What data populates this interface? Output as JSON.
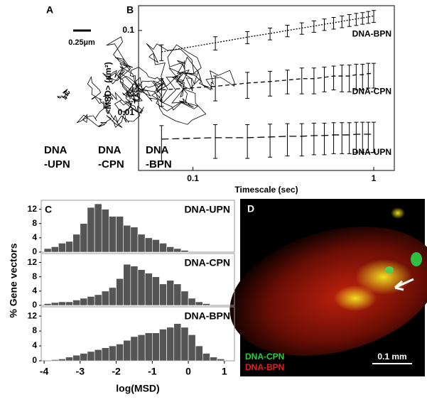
{
  "panel_a": {
    "letter": "A",
    "scale_bar": "0.25µm",
    "labels": [
      [
        "DNA",
        "-UPN"
      ],
      [
        "DNA",
        "-CPN"
      ],
      [
        "DNA",
        "-BPN"
      ]
    ]
  },
  "panel_d": {
    "letter": "D",
    "legend": [
      {
        "name": "DNA-CPN",
        "color": "#2ecc40"
      },
      {
        "name": "DNA-BPN",
        "color": "#e8201a"
      }
    ],
    "scale_bar": "0.1 mm"
  },
  "chart_data": [
    {
      "type": "line",
      "letter": "B",
      "xlabel": "Timescale (sec)",
      "ylabel": "<MSD> (µm²)",
      "log_scale": true,
      "x": [
        0.067,
        0.133,
        0.2,
        0.267,
        0.333,
        0.4,
        0.467,
        0.533,
        0.6,
        0.667,
        0.733,
        0.8,
        0.867,
        0.933,
        1
      ],
      "xlim": [
        0.05,
        1.3
      ],
      "xticks": [
        0.1,
        1
      ],
      "ylim": [
        0.002,
        0.2
      ],
      "yticks": [
        0.1,
        0.01
      ],
      "series": [
        {
          "name": "DNA-BPN",
          "color": "#000000",
          "line_style": "dotted",
          "values": [
            0.055,
            0.071,
            0.083,
            0.092,
            0.1,
            0.107,
            0.113,
            0.119,
            0.124,
            0.129,
            0.134,
            0.138,
            0.142,
            0.146,
            0.15
          ],
          "errors": [
            0.012,
            0.013,
            0.014,
            0.015,
            0.016,
            0.017,
            0.018,
            0.019,
            0.02,
            0.021,
            0.022,
            0.023,
            0.023,
            0.024,
            0.025
          ]
        },
        {
          "name": "DNA-CPN",
          "color": "#000000",
          "line_style": "dashed",
          "values": [
            0.019,
            0.021,
            0.023,
            0.024,
            0.025,
            0.026,
            0.026,
            0.027,
            0.028,
            0.028,
            0.028,
            0.029,
            0.029,
            0.03,
            0.03
          ],
          "errors": [
            0.007,
            0.007,
            0.008,
            0.008,
            0.008,
            0.009,
            0.009,
            0.009,
            0.009,
            0.01,
            0.01,
            0.01,
            0.01,
            0.01,
            0.01
          ]
        },
        {
          "name": "DNA-UPN",
          "color": "#000000",
          "line_style": "longdash",
          "values": [
            0.0048,
            0.005,
            0.005,
            0.0051,
            0.0052,
            0.0052,
            0.0053,
            0.0053,
            0.0054,
            0.0054,
            0.0054,
            0.0055,
            0.0055,
            0.0055,
            0.0055
          ],
          "errors": [
            0.0022,
            0.0022,
            0.0022,
            0.0022,
            0.0022,
            0.0022,
            0.0022,
            0.0022,
            0.0022,
            0.0022,
            0.0022,
            0.0022,
            0.0022,
            0.0022,
            0.0022
          ]
        }
      ]
    },
    {
      "type": "histogram",
      "letter": "C",
      "ylabel": "% Gene vectors",
      "name": "DNA-UPN",
      "color": "#555555",
      "bins": [
        -4,
        -3.8,
        -3.6,
        -3.4,
        -3.2,
        -3,
        -2.8,
        -2.6,
        -2.4,
        -2.2,
        -2,
        -1.8,
        -1.6,
        -1.4,
        -1.2,
        -1,
        -0.8,
        -0.6,
        -0.4,
        -0.2,
        0,
        0.2,
        0.4,
        0.6,
        0.8,
        1,
        1.2
      ],
      "values": [
        1,
        1.5,
        2.5,
        3,
        5,
        8,
        12.5,
        13.5,
        12,
        10,
        10,
        7.5,
        7,
        5,
        4,
        3.5,
        2.5,
        1.5,
        1,
        0.5,
        0,
        0,
        0,
        0,
        0,
        0
      ],
      "xlim": [
        -4.08,
        1.28
      ],
      "ylim": [
        0,
        14.5
      ],
      "yticks": [
        0,
        4,
        8,
        12
      ]
    },
    {
      "type": "histogram",
      "name": "DNA-CPN",
      "color": "#555555",
      "bins": [
        -4,
        -3.8,
        -3.6,
        -3.4,
        -3.2,
        -3,
        -2.8,
        -2.6,
        -2.4,
        -2.2,
        -2,
        -1.8,
        -1.6,
        -1.4,
        -1.2,
        -1,
        -0.8,
        -0.6,
        -0.4,
        -0.2,
        0,
        0.2,
        0.4,
        0.6,
        0.8,
        1,
        1.2
      ],
      "values": [
        0.5,
        0.8,
        1,
        1,
        1.5,
        2,
        2.5,
        3,
        4,
        5,
        7.5,
        11.5,
        11,
        10,
        9,
        8,
        6,
        7,
        6,
        4,
        2,
        1,
        0.5,
        0,
        0,
        0
      ],
      "xlim": [
        -4.08,
        1.28
      ],
      "ylim": [
        0,
        14.5
      ],
      "yticks": [
        0,
        4,
        8,
        12
      ]
    },
    {
      "type": "histogram",
      "name": "DNA-BPN",
      "color": "#555555",
      "xlabel": "log(MSD)",
      "bins": [
        -4,
        -3.8,
        -3.6,
        -3.4,
        -3.2,
        -3,
        -2.8,
        -2.6,
        -2.4,
        -2.2,
        -2,
        -1.8,
        -1.6,
        -1.4,
        -1.2,
        -1,
        -0.8,
        -0.6,
        -0.4,
        -0.2,
        0,
        0.2,
        0.4,
        0.6,
        0.8,
        1,
        1.2
      ],
      "values": [
        0,
        0.3,
        0.5,
        1,
        1.5,
        2,
        2.5,
        3,
        3.5,
        4,
        4.5,
        5.5,
        6.5,
        7,
        7.5,
        7.5,
        8.5,
        9,
        10,
        9,
        7,
        4,
        2,
        1,
        0.5,
        0
      ],
      "xlim": [
        -4.08,
        1.28
      ],
      "xticks": [
        -4,
        -3,
        -2,
        -1,
        0,
        1
      ],
      "ylim": [
        0,
        14.5
      ],
      "yticks": [
        0,
        4,
        8,
        12
      ]
    }
  ]
}
